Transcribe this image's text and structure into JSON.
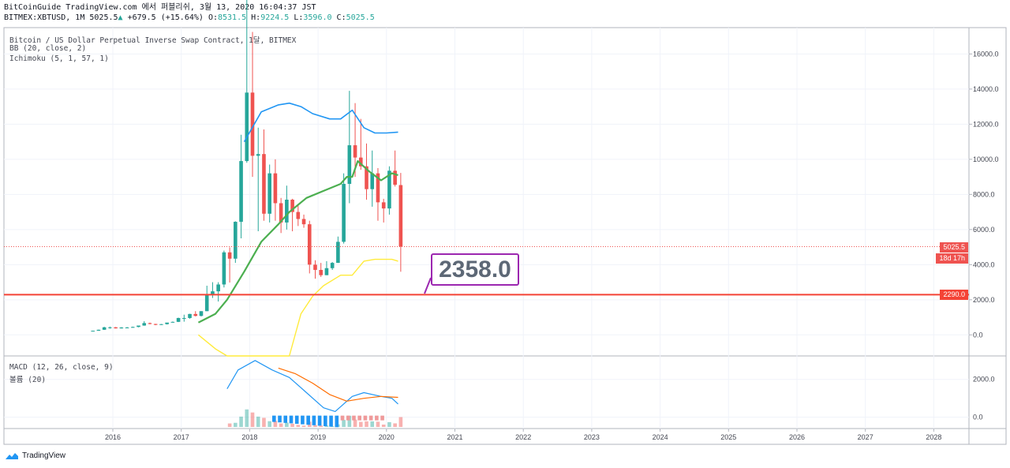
{
  "header": {
    "line1": "BitCoinGuide TradingView.com 에서 퍼블리쉬, 3월 13, 2020 16:04:37 JST",
    "symbol": "BITMEX:XBTUSD, 1M",
    "last": "5025.5",
    "change": "+679.5 (+15.64%)",
    "o_label": "O:",
    "o": "8531.5",
    "h_label": "H:",
    "h": "9224.5",
    "l_label": "L:",
    "l": "3596.0",
    "c_label": "C:",
    "c": "5025.5"
  },
  "legend": {
    "title": "Bitcoin / US Dollar Perpetual Inverse Swap Contract, 1달, BITMEX",
    "bb": "BB (20, close, 2)",
    "ichimoku": "Ichimoku (5, 1, 57, 1)",
    "macd": "MACD (12, 26, close, 9)",
    "volume": "볼륨 (20)"
  },
  "price_tags": {
    "last": "5025.5",
    "countdown": "18d 17h",
    "support": "2290.0"
  },
  "callout": "2358.0",
  "brand": "TradingView",
  "colors": {
    "up": "#26a69a",
    "down": "#ef5350",
    "bb_upper": "#2196f3",
    "bb_basis": "#4caf50",
    "ichimoku_span": "#ffeb3b",
    "support_line": "#f44336",
    "callout_border": "#9c27b0",
    "macd_line": "#2196f3",
    "signal_line": "#ff6d00"
  },
  "chart_data": {
    "type": "candlestick",
    "price_axis": {
      "ticks": [
        "0.0",
        "2000.0",
        "4000.0",
        "6000.0",
        "8000.0",
        "10000.0",
        "12000.0",
        "14000.0",
        "16000.0"
      ],
      "ylim": [
        -1200,
        17500
      ]
    },
    "macd_axis": {
      "ticks": [
        "0.0",
        "2000.0"
      ],
      "ylim": [
        -600,
        3200
      ]
    },
    "time_axis": [
      "2016",
      "2017",
      "2018",
      "2019",
      "2020",
      "2021",
      "2022",
      "2023",
      "2024",
      "2025",
      "2026",
      "2027",
      "2028"
    ],
    "candles_start": "2015-09",
    "candles": [
      [
        230,
        240,
        220,
        235
      ],
      [
        235,
        300,
        230,
        290
      ],
      [
        290,
        460,
        280,
        430
      ],
      [
        430,
        470,
        350,
        430
      ],
      [
        430,
        450,
        360,
        370
      ],
      [
        370,
        440,
        360,
        420
      ],
      [
        420,
        450,
        400,
        420
      ],
      [
        420,
        470,
        410,
        450
      ],
      [
        450,
        470,
        430,
        530
      ],
      [
        530,
        780,
        520,
        670
      ],
      [
        670,
        700,
        600,
        620
      ],
      [
        620,
        630,
        550,
        570
      ],
      [
        570,
        620,
        560,
        610
      ],
      [
        610,
        660,
        590,
        700
      ],
      [
        700,
        760,
        700,
        740
      ],
      [
        740,
        980,
        730,
        960
      ],
      [
        960,
        1150,
        750,
        960
      ],
      [
        960,
        1200,
        920,
        1190
      ],
      [
        1190,
        1350,
        1050,
        1080
      ],
      [
        1080,
        1350,
        1050,
        1350
      ],
      [
        1350,
        2800,
        1350,
        2300
      ],
      [
        2300,
        3000,
        2100,
        2480
      ],
      [
        2480,
        3000,
        1900,
        2870
      ],
      [
        2870,
        4800,
        2700,
        4700
      ],
      [
        4700,
        4980,
        2980,
        4340
      ],
      [
        4340,
        6470,
        4100,
        6440
      ],
      [
        6440,
        11400,
        5500,
        9900
      ],
      [
        9900,
        19800,
        9800,
        13800
      ],
      [
        13800,
        17250,
        9000,
        10200
      ],
      [
        10200,
        11800,
        5900,
        10300
      ],
      [
        10300,
        11700,
        6500,
        6900
      ],
      [
        6900,
        9700,
        6400,
        9200
      ],
      [
        9200,
        10000,
        6500,
        7500
      ],
      [
        7500,
        7800,
        5800,
        6400
      ],
      [
        6400,
        8500,
        6000,
        7700
      ],
      [
        7700,
        7750,
        5900,
        7000
      ],
      [
        7000,
        7400,
        6200,
        6600
      ],
      [
        6600,
        6850,
        6100,
        6300
      ],
      [
        6300,
        6500,
        3500,
        4000
      ],
      [
        4000,
        4250,
        3200,
        3700
      ],
      [
        3700,
        4100,
        3300,
        3400
      ],
      [
        3400,
        4200,
        3400,
        3800
      ],
      [
        3800,
        4150,
        3700,
        4100
      ],
      [
        4100,
        5600,
        4100,
        5300
      ],
      [
        5300,
        9200,
        5200,
        8600
      ],
      [
        8600,
        13900,
        7500,
        10800
      ],
      [
        10800,
        13200,
        9000,
        10100
      ],
      [
        10100,
        12300,
        9400,
        9600
      ],
      [
        9600,
        10900,
        7700,
        8300
      ],
      [
        8300,
        10500,
        7300,
        9200
      ],
      [
        9200,
        9500,
        6500,
        7550
      ],
      [
        7550,
        7750,
        6400,
        7200
      ],
      [
        7200,
        9600,
        6850,
        9350
      ],
      [
        9350,
        10500,
        8450,
        8550
      ],
      [
        8531.5,
        9224.5,
        3596,
        5025.5
      ]
    ],
    "bb_upper": [
      [
        2017.92,
        11000
      ],
      [
        2018.17,
        12700
      ],
      [
        2018.42,
        13100
      ],
      [
        2018.58,
        13200
      ],
      [
        2018.75,
        13000
      ],
      [
        2018.92,
        12600
      ],
      [
        2019.17,
        12300
      ],
      [
        2019.33,
        12300
      ],
      [
        2019.5,
        12800
      ],
      [
        2019.67,
        11800
      ],
      [
        2019.83,
        11500
      ],
      [
        2020.0,
        11500
      ],
      [
        2020.17,
        11550
      ]
    ],
    "bb_basis": [
      [
        2017.25,
        700
      ],
      [
        2017.5,
        1200
      ],
      [
        2017.67,
        2000
      ],
      [
        2017.92,
        3600
      ],
      [
        2018.17,
        5300
      ],
      [
        2018.42,
        6300
      ],
      [
        2018.58,
        7000
      ],
      [
        2018.83,
        7800
      ],
      [
        2019.08,
        8200
      ],
      [
        2019.33,
        8600
      ],
      [
        2019.42,
        9000
      ],
      [
        2019.5,
        9000
      ],
      [
        2019.58,
        9900
      ],
      [
        2019.75,
        9300
      ],
      [
        2019.92,
        8800
      ],
      [
        2020.08,
        9200
      ],
      [
        2020.17,
        9100
      ]
    ],
    "ichimoku_span": [
      [
        2017.25,
        0
      ],
      [
        2017.5,
        -800
      ],
      [
        2017.67,
        -1200
      ],
      [
        2018.58,
        -1200
      ],
      [
        2018.75,
        1200
      ],
      [
        2018.92,
        2200
      ],
      [
        2019.08,
        2800
      ],
      [
        2019.33,
        3400
      ],
      [
        2019.5,
        3400
      ],
      [
        2019.67,
        4200
      ],
      [
        2019.83,
        4300
      ],
      [
        2020.08,
        4300
      ],
      [
        2020.17,
        4200
      ]
    ],
    "support_level": 2290.0,
    "macd_line": [
      [
        2017.67,
        1500
      ],
      [
        2017.83,
        2500
      ],
      [
        2018.08,
        3000
      ],
      [
        2018.33,
        2500
      ],
      [
        2018.58,
        2100
      ],
      [
        2018.83,
        1300
      ],
      [
        2019.08,
        500
      ],
      [
        2019.25,
        300
      ],
      [
        2019.5,
        1100
      ],
      [
        2019.67,
        1300
      ],
      [
        2019.92,
        1100
      ],
      [
        2020.08,
        1000
      ],
      [
        2020.17,
        700
      ]
    ],
    "signal_line": [
      [
        2018.42,
        2600
      ],
      [
        2018.67,
        2300
      ],
      [
        2018.92,
        1800
      ],
      [
        2019.17,
        1200
      ],
      [
        2019.42,
        850
      ],
      [
        2019.67,
        1000
      ],
      [
        2019.92,
        1100
      ],
      [
        2020.17,
        1050
      ]
    ]
  }
}
